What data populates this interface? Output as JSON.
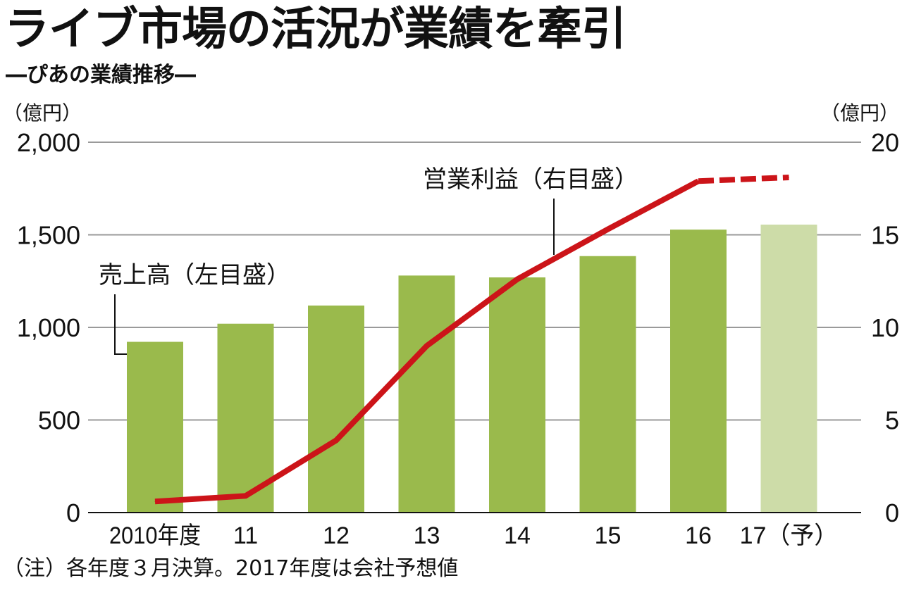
{
  "title": "ライブ市場の活況が業績を牽引",
  "subtitle": "―ぴあの業績推移―",
  "footnote": "（注）各年度３月決算。2017年度は会社予想値",
  "colors": {
    "bar": "#9aba4c",
    "bar_forecast": "#cddca8",
    "line": "#cc1419",
    "grid": "#9a9a9a"
  },
  "chart_data": {
    "type": "bar",
    "categories": [
      "2010年度",
      "11",
      "12",
      "13",
      "14",
      "15",
      "16",
      "17（予）"
    ],
    "forecast_flags": [
      false,
      false,
      false,
      false,
      false,
      false,
      false,
      true
    ],
    "left_axis": {
      "unit_label": "（億円）",
      "ylim": [
        0,
        2000
      ],
      "ticks": [
        0,
        500,
        1000,
        1500,
        2000
      ],
      "tick_labels": [
        "0",
        "500",
        "1,000",
        "1,500",
        "2,000"
      ]
    },
    "right_axis": {
      "unit_label": "（億円）",
      "ylim": [
        0,
        20
      ],
      "ticks": [
        0,
        5,
        10,
        15,
        20
      ],
      "tick_labels": [
        "0",
        "5",
        "10",
        "15",
        "20"
      ]
    },
    "grid": true,
    "series": [
      {
        "name": "売上高（左目盛）",
        "type": "bar",
        "axis": "left",
        "values": [
          922,
          1020,
          1118,
          1280,
          1270,
          1385,
          1528,
          1555
        ]
      },
      {
        "name": "営業利益（右目盛）",
        "type": "line",
        "axis": "right",
        "values": [
          0.6,
          0.9,
          3.9,
          9.0,
          12.6,
          15.3,
          17.9,
          18.1
        ],
        "dashed_from_index": 6
      }
    ]
  }
}
